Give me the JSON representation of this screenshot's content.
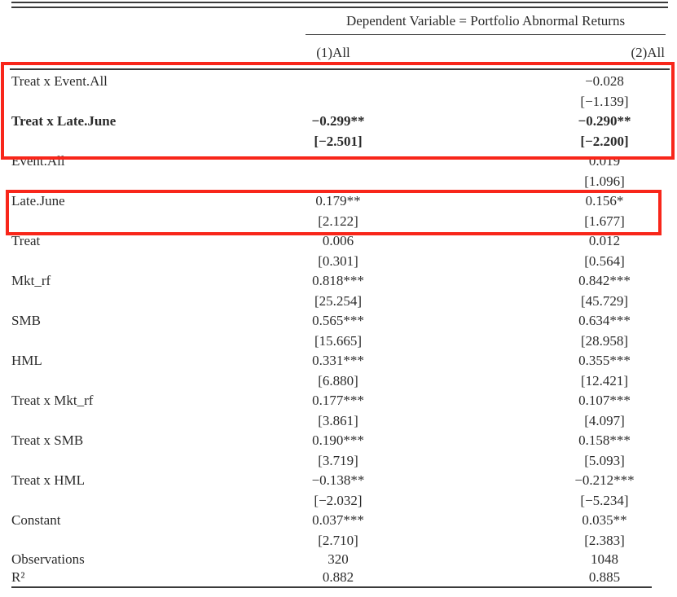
{
  "table": {
    "dep_var_header": "Dependent Variable = Portfolio Abnormal Returns",
    "col_headers": [
      "(1)All",
      "(2)All"
    ],
    "rows": [
      {
        "label": "Treat x Event.All",
        "c1": "",
        "t1": "",
        "c2": "−0.028",
        "t2": "[−1.139]"
      },
      {
        "label": "Treat x Late.June",
        "c1": "−0.299**",
        "t1": "[−2.501]",
        "c2": "−0.290**",
        "t2": "[−2.200]"
      },
      {
        "label": "Event.All",
        "c1": "",
        "t1": "",
        "c2": "0.019",
        "t2": "[1.096]"
      },
      {
        "label": "Late.June",
        "c1": "0.179**",
        "t1": "[2.122]",
        "c2": "0.156*",
        "t2": "[1.677]"
      },
      {
        "label": "Treat",
        "c1": "0.006",
        "t1": "[0.301]",
        "c2": "0.012",
        "t2": "[0.564]"
      },
      {
        "label": "Mkt_rf",
        "c1": "0.818***",
        "t1": "[25.254]",
        "c2": "0.842***",
        "t2": "[45.729]"
      },
      {
        "label": "SMB",
        "c1": "0.565***",
        "t1": "[15.665]",
        "c2": "0.634***",
        "t2": "[28.958]"
      },
      {
        "label": "HML",
        "c1": "0.331***",
        "t1": "[6.880]",
        "c2": "0.355***",
        "t2": "[12.421]"
      },
      {
        "label": "Treat x Mkt_rf",
        "c1": "0.177***",
        "t1": "[3.861]",
        "c2": "0.107***",
        "t2": "[4.097]"
      },
      {
        "label": "Treat x SMB",
        "c1": "0.190***",
        "t1": "[3.719]",
        "c2": "0.158***",
        "t2": "[5.093]"
      },
      {
        "label": "Treat x HML",
        "c1": "−0.138**",
        "t1": "[−2.032]",
        "c2": "−0.212***",
        "t2": "[−5.234]"
      },
      {
        "label": "Constant",
        "c1": "0.037***",
        "t1": "[2.710]",
        "c2": "0.035**",
        "t2": "[2.383]"
      },
      {
        "label": "Observations",
        "c1": "320",
        "c2": "1048"
      },
      {
        "label": "R²",
        "c1": "0.882",
        "c2": "0.885"
      }
    ]
  },
  "annotations": {
    "highlight_color": "#f8261a",
    "box_count": 2,
    "box_1_rows": "Treat x Event.All; Treat x Late.June",
    "box_2_rows": "Late.June"
  }
}
